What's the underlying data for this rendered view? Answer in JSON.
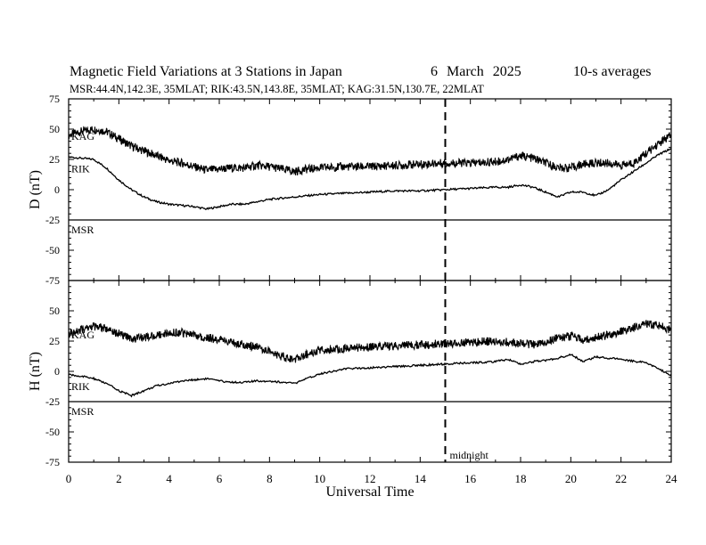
{
  "header": {
    "title": "Magnetic Field Variations at 3 Stations in Japan",
    "date": "6   March   2025",
    "averaging": "10-s averages",
    "stations": "MSR:44.4N,142.3E, 35MLAT;  RIK:43.5N,143.8E, 35MLAT;  KAG:31.5N,130.7E, 22MLAT"
  },
  "chart_data": [
    {
      "type": "line",
      "panel": "D",
      "ylabel": "D (nT)",
      "ylim": [
        -75,
        75
      ],
      "yticks": [
        75,
        50,
        25,
        0,
        -25,
        -50,
        -75
      ],
      "xlim": [
        0,
        24
      ],
      "grid": false,
      "series": [
        {
          "name": "KAG",
          "x": [
            0,
            0.5,
            1,
            1.5,
            2,
            2.5,
            3,
            3.5,
            4,
            4.5,
            5,
            5.5,
            6,
            6.5,
            7,
            7.5,
            8,
            8.5,
            9,
            9.5,
            10,
            11,
            12,
            13,
            14,
            15,
            16,
            17,
            17.5,
            18,
            18.5,
            19,
            19.5,
            20,
            20.5,
            21,
            21.5,
            22,
            22.5,
            23,
            23.5,
            24
          ],
          "values": [
            45,
            48,
            50,
            48,
            42,
            36,
            32,
            28,
            24,
            22,
            19,
            16,
            17,
            18,
            18,
            20,
            19,
            17,
            15,
            17,
            18,
            19,
            19,
            20,
            21,
            22,
            22,
            23,
            25,
            28,
            26,
            22,
            18,
            18,
            21,
            22,
            22,
            20,
            22,
            30,
            38,
            45
          ]
        },
        {
          "name": "RIK",
          "values": [
            27,
            26,
            25,
            18,
            8,
            0,
            -6,
            -10,
            -12,
            -13,
            -14,
            -16,
            -14,
            -12,
            -12,
            -10,
            -8,
            -7,
            -6,
            -5,
            -4,
            -3,
            -2,
            -1,
            -1,
            0,
            1,
            2,
            2,
            4,
            2,
            -2,
            -6,
            -2,
            -2,
            -5,
            0,
            8,
            15,
            22,
            29,
            34
          ],
          "x": [
            0,
            0.5,
            1,
            1.5,
            2,
            2.5,
            3,
            3.5,
            4,
            4.5,
            5,
            5.5,
            6,
            6.5,
            7,
            7.5,
            8,
            8.5,
            9,
            9.5,
            10,
            11,
            12,
            13,
            14,
            15,
            16,
            17,
            17.5,
            18,
            18.5,
            19,
            19.5,
            20,
            20.5,
            21,
            21.5,
            22,
            22.5,
            23,
            23.5,
            24
          ]
        },
        {
          "name": "MSR",
          "x": [],
          "values": []
        }
      ]
    },
    {
      "type": "line",
      "panel": "H",
      "ylabel": "H (nT)",
      "xlabel": "Universal Time",
      "ylim": [
        -75,
        75
      ],
      "yticks": [
        75,
        50,
        25,
        0,
        -25,
        -50,
        -75
      ],
      "xlim": [
        0,
        24
      ],
      "xticks": [
        0,
        2,
        4,
        6,
        8,
        10,
        12,
        14,
        16,
        18,
        20,
        22,
        24
      ],
      "grid": false,
      "series": [
        {
          "name": "KAG",
          "x": [
            0,
            0.5,
            1,
            1.5,
            2,
            2.5,
            3,
            3.5,
            4,
            4.5,
            5,
            5.5,
            6,
            6.5,
            7,
            7.5,
            8,
            8.5,
            9,
            9.5,
            10,
            11,
            12,
            13,
            14,
            15,
            16,
            17,
            18,
            18.5,
            19,
            19.5,
            20,
            20.5,
            21,
            21.5,
            22,
            22.5,
            23,
            23.5,
            24
          ],
          "values": [
            31,
            34,
            37,
            35,
            31,
            27,
            28,
            30,
            32,
            32,
            30,
            28,
            26,
            24,
            22,
            20,
            17,
            12,
            10,
            14,
            18,
            19,
            20,
            21,
            22,
            23,
            24,
            25,
            23,
            22,
            24,
            28,
            29,
            26,
            28,
            30,
            33,
            36,
            39,
            38,
            34
          ]
        },
        {
          "name": "RIK",
          "x": [
            0,
            0.5,
            1,
            1.5,
            2,
            2.5,
            3,
            3.5,
            4,
            4.5,
            5,
            5.5,
            6,
            6.5,
            7,
            7.5,
            8,
            8.5,
            9,
            9.5,
            10,
            11,
            12,
            13,
            14,
            15,
            16,
            17,
            17.5,
            18,
            18.5,
            19,
            19.5,
            20,
            20.5,
            21,
            22,
            23,
            24
          ],
          "values": [
            -3,
            -4,
            -6,
            -10,
            -16,
            -20,
            -16,
            -12,
            -10,
            -8,
            -7,
            -6,
            -8,
            -9,
            -9,
            -8,
            -8,
            -9,
            -10,
            -6,
            -2,
            2,
            3,
            4,
            5,
            6,
            7,
            8,
            10,
            6,
            8,
            9,
            11,
            14,
            8,
            12,
            10,
            7,
            -3
          ]
        },
        {
          "name": "MSR",
          "x": [],
          "values": []
        }
      ]
    }
  ],
  "annotations": {
    "midnight_label": "midnight",
    "midnight_ut": 15
  },
  "colors": {
    "trace": "#000000",
    "background": "#ffffff"
  }
}
